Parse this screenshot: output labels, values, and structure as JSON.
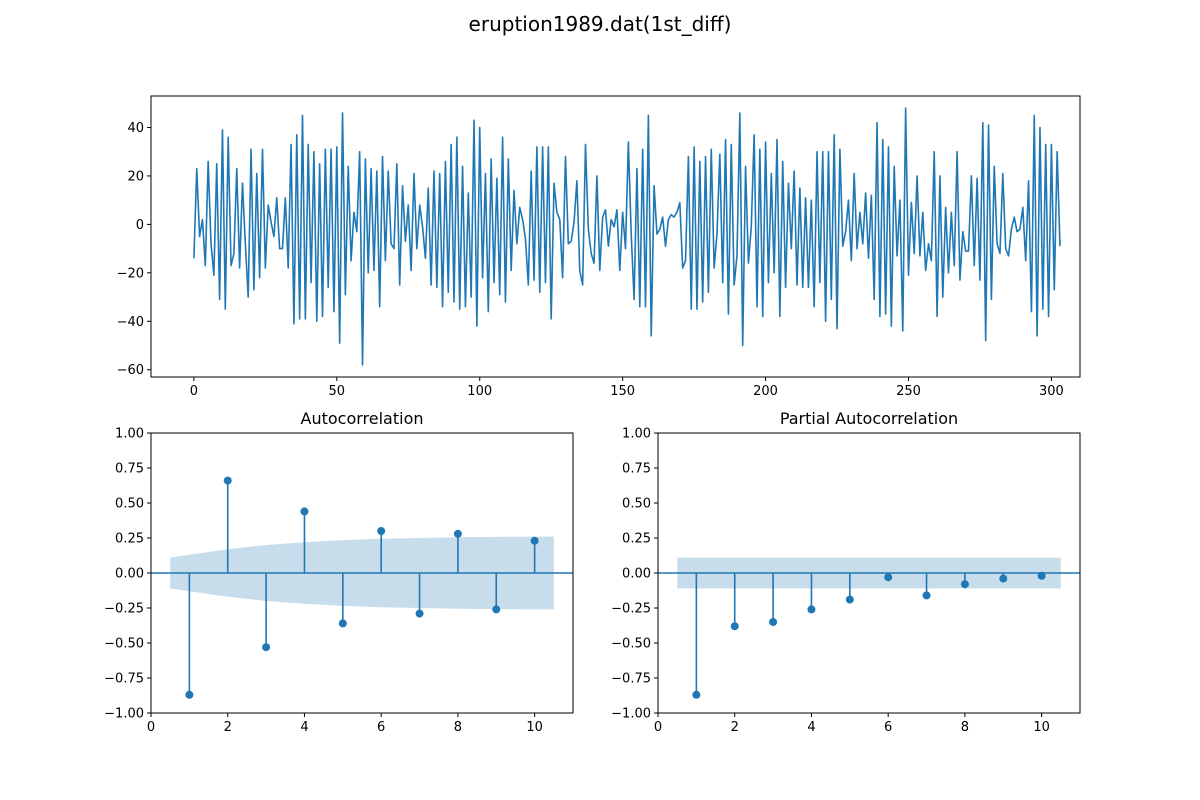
{
  "figure": {
    "title": "eruption1989.dat(1st_diff)"
  },
  "colors": {
    "line": "#1f77b4",
    "band": "#1f77b4",
    "band_opacity": 0.25
  },
  "chart_data": [
    {
      "type": "line",
      "title": "",
      "xlabel": "",
      "ylabel": "",
      "xlim": [
        -15,
        310
      ],
      "ylim": [
        -63,
        53
      ],
      "xticks": [
        0,
        50,
        100,
        150,
        200,
        250,
        300
      ],
      "yticks": [
        -60,
        -40,
        -20,
        0,
        20,
        40
      ],
      "grid": false,
      "series": [
        {
          "values": [
            -14,
            23,
            -5,
            2,
            -17,
            26,
            -8,
            -21,
            25,
            -31,
            39,
            -35,
            36,
            -17,
            -12,
            23,
            -18,
            17,
            -8,
            -30,
            31,
            -27,
            21,
            -22,
            31,
            -18,
            8,
            1,
            -5,
            11,
            -10,
            -10,
            11,
            -18,
            33,
            -41,
            37,
            -39,
            45,
            -39,
            33,
            -24,
            30,
            -40,
            25,
            -38,
            31,
            -26,
            31,
            -36,
            32,
            -49,
            46,
            -29,
            24,
            -15,
            5,
            -3,
            30,
            -58,
            27,
            -20,
            23,
            -19,
            22,
            -34,
            28,
            -15,
            22,
            -8,
            -10,
            25,
            -25,
            16,
            -7,
            8,
            -19,
            21,
            -10,
            8,
            -1,
            -14,
            15,
            -25,
            22,
            -26,
            21,
            -34,
            26,
            -28,
            33,
            -32,
            36,
            -35,
            24,
            -34,
            13,
            -30,
            43,
            -42,
            40,
            -22,
            21,
            -36,
            27,
            -24,
            19,
            -29,
            36,
            -32,
            27,
            -19,
            14,
            -8,
            7,
            2,
            -6,
            -25,
            22,
            -23,
            32,
            -28,
            32,
            -24,
            32,
            -39,
            17,
            5,
            2,
            -22,
            28,
            -8,
            -7,
            1,
            18,
            -19,
            -25,
            33,
            -2,
            -12,
            -16,
            20,
            -19,
            3,
            6,
            -9,
            2,
            -1,
            6,
            -19,
            5,
            -10,
            34,
            -4,
            -31,
            23,
            -34,
            31,
            -34,
            45,
            -46,
            16,
            -4,
            -2,
            3,
            -9,
            2,
            4,
            3,
            5,
            9,
            -18,
            -15,
            28,
            -35,
            32,
            -35,
            26,
            -32,
            28,
            -28,
            31,
            -18,
            -4,
            29,
            -24,
            35,
            -37,
            33,
            -25,
            -13,
            46,
            -50,
            24,
            -16,
            -1,
            37,
            -34,
            31,
            -38,
            34,
            -24,
            21,
            -20,
            35,
            -38,
            26,
            -26,
            17,
            -10,
            22,
            -25,
            15,
            -26,
            11,
            -26,
            10,
            -34,
            30,
            -24,
            30,
            -40,
            30,
            -31,
            37,
            -43,
            31,
            -9,
            -3,
            10,
            -15,
            21,
            -10,
            5,
            -8,
            13,
            -14,
            12,
            -31,
            42,
            -38,
            35,
            -37,
            32,
            -42,
            24,
            -13,
            10,
            -44,
            48,
            -21,
            9,
            -12,
            20,
            -13,
            5,
            -19,
            -8,
            -15,
            30,
            -38,
            20,
            -30,
            7,
            -20,
            5,
            -17,
            30,
            -23,
            -3,
            -11,
            -11,
            20,
            -17,
            19,
            -23,
            42,
            -48,
            41,
            -31,
            24,
            -8,
            -12,
            21,
            -10,
            -13,
            -2,
            3,
            -3,
            -2,
            7,
            -15,
            18,
            -36,
            45,
            -46,
            40,
            -35,
            33,
            -38,
            33,
            -27,
            30,
            -9
          ]
        }
      ]
    },
    {
      "type": "stem",
      "title": "Autocorrelation",
      "xlabel": "",
      "ylabel": "",
      "xlim": [
        0,
        11
      ],
      "ylim": [
        -1,
        1
      ],
      "xticks": [
        0,
        2,
        4,
        6,
        8,
        10
      ],
      "yticks": [
        -1.0,
        -0.75,
        -0.5,
        -0.25,
        0.0,
        0.25,
        0.5,
        0.75,
        1.0
      ],
      "ytick_labels": [
        "−1.00",
        "−0.75",
        "−0.50",
        "−0.25",
        "0.00",
        "0.25",
        "0.50",
        "0.75",
        "1.00"
      ],
      "grid": false,
      "lags": [
        1,
        2,
        3,
        4,
        5,
        6,
        7,
        8,
        9,
        10
      ],
      "values": [
        -0.87,
        0.66,
        -0.53,
        0.44,
        -0.36,
        0.3,
        -0.29,
        0.28,
        -0.26,
        0.23
      ],
      "confidence_band": {
        "x": [
          0.5,
          1,
          2,
          3,
          4,
          5,
          6,
          7,
          8,
          9,
          10,
          10.5
        ],
        "upper": [
          0.11,
          0.13,
          0.17,
          0.2,
          0.22,
          0.235,
          0.245,
          0.25,
          0.255,
          0.258,
          0.26,
          0.26
        ]
      }
    },
    {
      "type": "stem",
      "title": "Partial Autocorrelation",
      "xlabel": "",
      "ylabel": "",
      "xlim": [
        0,
        11
      ],
      "ylim": [
        -1,
        1
      ],
      "xticks": [
        0,
        2,
        4,
        6,
        8,
        10
      ],
      "yticks": [
        -1.0,
        -0.75,
        -0.5,
        -0.25,
        0.0,
        0.25,
        0.5,
        0.75,
        1.0
      ],
      "ytick_labels": [
        "−1.00",
        "−0.75",
        "−0.50",
        "−0.25",
        "0.00",
        "0.25",
        "0.50",
        "0.75",
        "1.00"
      ],
      "grid": false,
      "lags": [
        1,
        2,
        3,
        4,
        5,
        6,
        7,
        8,
        9,
        10
      ],
      "values": [
        -0.87,
        -0.38,
        -0.35,
        -0.26,
        -0.19,
        -0.03,
        -0.16,
        -0.08,
        -0.04,
        -0.02
      ],
      "confidence_band": {
        "x": [
          0.5,
          10.5
        ],
        "upper": [
          0.11,
          0.11
        ]
      }
    }
  ]
}
